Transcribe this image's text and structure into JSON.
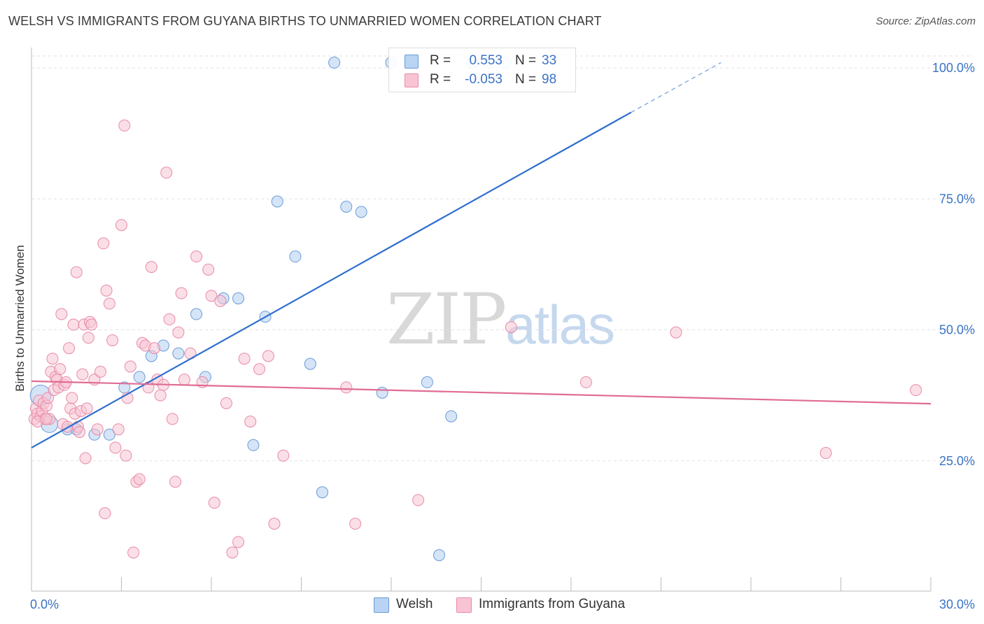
{
  "header": {
    "title": "WELSH VS IMMIGRANTS FROM GUYANA BIRTHS TO UNMARRIED WOMEN CORRELATION CHART",
    "source": "Source: ZipAtlas.com"
  },
  "watermark": {
    "zip": "ZIP",
    "atlas": "atlas"
  },
  "legend": {
    "welsh": {
      "r_label": "R =",
      "r_value": "0.553",
      "n_label": "N =",
      "n_value": "33"
    },
    "guyana": {
      "r_label": "R =",
      "r_value": "-0.053",
      "n_label": "N =",
      "n_value": "98"
    }
  },
  "colors": {
    "welsh_fill": "#b9d3f2",
    "welsh_stroke": "#6a9ad8",
    "welsh_line": "#2f6fce",
    "guyana_fill": "#f8c4d3",
    "guyana_stroke": "#e88aa8",
    "guyana_line": "#e06c93",
    "tick_text": "#3a73c4",
    "grid": "#e2e2e2"
  },
  "chart_data": {
    "type": "scatter",
    "title": "WELSH VS IMMIGRANTS FROM GUYANA BIRTHS TO UNMARRIED WOMEN CORRELATION CHART",
    "xlabel": "",
    "ylabel": "Births to Unmarried Women",
    "xlim": [
      0,
      30
    ],
    "ylim": [
      0,
      100
    ],
    "x_tick_labels": [
      "0.0%",
      "30.0%"
    ],
    "y_tick_labels": [
      "25.0%",
      "50.0%",
      "75.0%",
      "100.0%"
    ],
    "y_ticks": [
      25,
      50,
      75,
      100
    ],
    "grid": true,
    "legend_position": "top-center",
    "series": [
      {
        "name": "Welsh",
        "points": [
          [
            0.3,
            37.5
          ],
          [
            0.6,
            32.0
          ],
          [
            1.2,
            31.0
          ],
          [
            1.5,
            31.0
          ],
          [
            2.1,
            30.0
          ],
          [
            2.6,
            30.0
          ],
          [
            3.1,
            39.0
          ],
          [
            3.6,
            41.0
          ],
          [
            4.0,
            45.0
          ],
          [
            4.4,
            47.0
          ],
          [
            4.9,
            45.5
          ],
          [
            5.5,
            53.0
          ],
          [
            5.8,
            41.0
          ],
          [
            6.4,
            56.0
          ],
          [
            6.9,
            56.0
          ],
          [
            7.4,
            28.0
          ],
          [
            7.8,
            52.5
          ],
          [
            8.2,
            74.5
          ],
          [
            8.8,
            64.0
          ],
          [
            9.3,
            43.5
          ],
          [
            9.7,
            19.0
          ],
          [
            10.1,
            101.0
          ],
          [
            10.5,
            73.5
          ],
          [
            11.0,
            72.5
          ],
          [
            11.7,
            38.0
          ],
          [
            12.0,
            101.0
          ],
          [
            12.6,
            101.0
          ],
          [
            13.2,
            40.0
          ],
          [
            13.6,
            7.0
          ],
          [
            14.0,
            33.5
          ],
          [
            14.7,
            101.0
          ],
          [
            15.3,
            101.0
          ],
          [
            15.8,
            101.0
          ]
        ],
        "sizes": [
          22,
          18,
          12,
          12,
          12,
          12,
          12,
          12,
          12,
          12,
          12,
          12,
          12,
          12,
          12,
          12,
          12,
          12,
          12,
          12,
          12,
          12,
          12,
          12,
          12,
          12,
          12,
          12,
          12,
          12,
          12,
          12,
          12
        ],
        "trend": {
          "x": [
            0,
            20
          ],
          "y": [
            27.5,
            91.5
          ],
          "dashed_to": [
            23,
            101
          ]
        }
      },
      {
        "name": "Immigrants from Guyana",
        "points": [
          [
            0.1,
            33.0
          ],
          [
            0.15,
            35.0
          ],
          [
            0.2,
            34.0
          ],
          [
            0.25,
            36.5
          ],
          [
            0.3,
            33.5
          ],
          [
            0.35,
            34.5
          ],
          [
            0.4,
            36.0
          ],
          [
            0.45,
            33.0
          ],
          [
            0.5,
            35.5
          ],
          [
            0.55,
            37.0
          ],
          [
            0.6,
            33.0
          ],
          [
            0.65,
            42.0
          ],
          [
            0.7,
            44.5
          ],
          [
            0.75,
            38.5
          ],
          [
            0.8,
            41.0
          ],
          [
            0.85,
            40.5
          ],
          [
            0.9,
            39.0
          ],
          [
            0.95,
            42.5
          ],
          [
            1.0,
            53.0
          ],
          [
            1.05,
            32.0
          ],
          [
            1.1,
            39.5
          ],
          [
            1.15,
            40.0
          ],
          [
            1.2,
            31.5
          ],
          [
            1.25,
            46.5
          ],
          [
            1.3,
            35.0
          ],
          [
            1.35,
            37.0
          ],
          [
            1.4,
            51.0
          ],
          [
            1.45,
            34.0
          ],
          [
            1.5,
            61.0
          ],
          [
            1.55,
            31.5
          ],
          [
            1.6,
            30.5
          ],
          [
            1.65,
            34.5
          ],
          [
            1.7,
            41.5
          ],
          [
            1.75,
            51.0
          ],
          [
            1.8,
            25.5
          ],
          [
            1.85,
            35.0
          ],
          [
            1.9,
            48.5
          ],
          [
            1.95,
            51.5
          ],
          [
            2.0,
            51.0
          ],
          [
            2.1,
            40.5
          ],
          [
            2.2,
            31.0
          ],
          [
            2.3,
            42.0
          ],
          [
            2.4,
            66.5
          ],
          [
            2.45,
            15.0
          ],
          [
            2.5,
            57.5
          ],
          [
            2.6,
            55.0
          ],
          [
            2.7,
            48.0
          ],
          [
            2.8,
            27.5
          ],
          [
            2.9,
            31.0
          ],
          [
            3.0,
            70.0
          ],
          [
            3.1,
            89.0
          ],
          [
            3.15,
            26.0
          ],
          [
            3.2,
            37.0
          ],
          [
            3.3,
            43.0
          ],
          [
            3.4,
            7.5
          ],
          [
            3.5,
            21.0
          ],
          [
            3.6,
            21.5
          ],
          [
            3.7,
            47.5
          ],
          [
            3.8,
            47.0
          ],
          [
            3.9,
            39.0
          ],
          [
            4.0,
            62.0
          ],
          [
            4.1,
            46.5
          ],
          [
            4.2,
            40.5
          ],
          [
            4.3,
            37.5
          ],
          [
            4.4,
            39.5
          ],
          [
            4.5,
            80.0
          ],
          [
            4.6,
            52.0
          ],
          [
            4.7,
            33.0
          ],
          [
            4.8,
            21.0
          ],
          [
            4.9,
            49.5
          ],
          [
            5.0,
            57.0
          ],
          [
            5.1,
            40.5
          ],
          [
            5.3,
            45.5
          ],
          [
            5.5,
            64.0
          ],
          [
            5.7,
            40.0
          ],
          [
            5.9,
            61.5
          ],
          [
            6.0,
            56.5
          ],
          [
            6.1,
            17.0
          ],
          [
            6.3,
            55.5
          ],
          [
            6.5,
            36.0
          ],
          [
            6.7,
            7.5
          ],
          [
            6.9,
            9.5
          ],
          [
            7.1,
            44.5
          ],
          [
            7.3,
            32.5
          ],
          [
            7.6,
            42.5
          ],
          [
            7.9,
            45.0
          ],
          [
            8.1,
            13.0
          ],
          [
            8.4,
            26.0
          ],
          [
            10.5,
            39.0
          ],
          [
            10.8,
            13.0
          ],
          [
            12.9,
            17.5
          ],
          [
            16.0,
            50.5
          ],
          [
            18.5,
            40.0
          ],
          [
            21.5,
            49.5
          ],
          [
            26.5,
            26.5
          ],
          [
            29.5,
            38.5
          ],
          [
            0.2,
            32.5
          ],
          [
            0.5,
            33.0
          ]
        ],
        "trend": {
          "x": [
            0,
            30
          ],
          "y": [
            40.2,
            35.9
          ]
        }
      }
    ]
  },
  "bottom_legend": {
    "welsh": "Welsh",
    "guyana": "Immigrants from Guyana"
  }
}
